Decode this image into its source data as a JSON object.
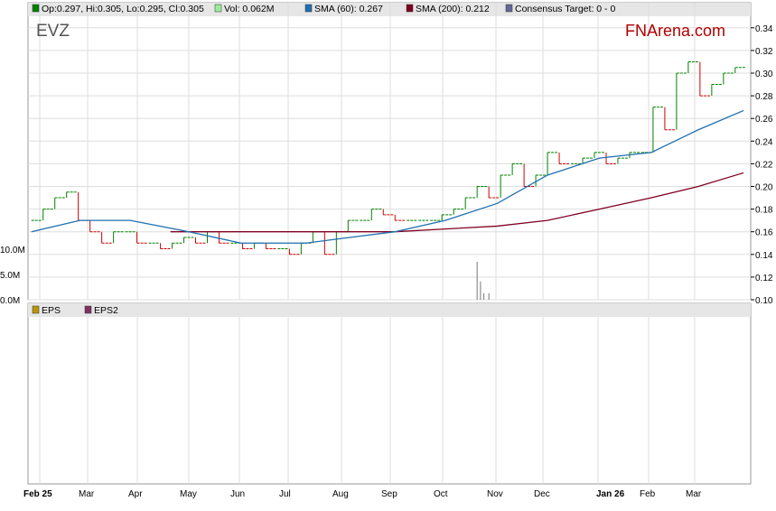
{
  "legend": [
    {
      "label": "Op:0.297, Hi:0.305, Lo:0.295, Cl:0.305",
      "color": "#008000"
    },
    {
      "label": "Vol: 0.062M",
      "color": "#99ee99"
    },
    {
      "label": "SMA (60): 0.267",
      "color": "#1f6fb0"
    },
    {
      "label": "SMA (200): 0.212",
      "color": "#800020"
    },
    {
      "label": "Consensus Target: 0 - 0",
      "color": "#666699"
    }
  ],
  "ticker": "EVZ",
  "brand": "FNArena.com",
  "lower_legend": [
    {
      "label": "EPS",
      "color": "#b8960b"
    },
    {
      "label": "EPS2",
      "color": "#803060"
    }
  ],
  "chart_data": {
    "type": "line",
    "price_axis": {
      "ticks": [
        "0.34",
        "0.32",
        "0.30",
        "0.28",
        "0.26",
        "0.24",
        "0.22",
        "0.20",
        "0.18",
        "0.16",
        "0.14",
        "0.12",
        "0.10"
      ],
      "ylim": [
        0.1,
        0.34
      ]
    },
    "volume_axis": {
      "ticks": [
        "10.0M",
        "5.0M",
        "0.0M"
      ]
    },
    "x_ticks": [
      "Feb 25",
      "Mar",
      "Apr",
      "May",
      "Jun",
      "Jul",
      "Aug",
      "Sep",
      "Oct",
      "Nov",
      "Dec",
      "Jan 26",
      "Feb",
      "Mar"
    ],
    "price": [
      [
        "2025-01-27",
        0.17
      ],
      [
        "2025-02-03",
        0.18
      ],
      [
        "2025-02-10",
        0.19
      ],
      [
        "2025-02-17",
        0.195
      ],
      [
        "2025-02-24",
        0.17
      ],
      [
        "2025-03-03",
        0.16
      ],
      [
        "2025-03-10",
        0.15
      ],
      [
        "2025-03-17",
        0.16
      ],
      [
        "2025-03-24",
        0.16
      ],
      [
        "2025-03-31",
        0.15
      ],
      [
        "2025-04-07",
        0.15
      ],
      [
        "2025-04-14",
        0.145
      ],
      [
        "2025-04-21",
        0.15
      ],
      [
        "2025-04-28",
        0.155
      ],
      [
        "2025-05-05",
        0.15
      ],
      [
        "2025-05-12",
        0.16
      ],
      [
        "2025-05-19",
        0.15
      ],
      [
        "2025-05-26",
        0.15
      ],
      [
        "2025-06-02",
        0.145
      ],
      [
        "2025-06-09",
        0.15
      ],
      [
        "2025-06-16",
        0.145
      ],
      [
        "2025-06-23",
        0.145
      ],
      [
        "2025-06-30",
        0.14
      ],
      [
        "2025-07-07",
        0.15
      ],
      [
        "2025-07-14",
        0.16
      ],
      [
        "2025-07-21",
        0.14
      ],
      [
        "2025-07-28",
        0.16
      ],
      [
        "2025-08-04",
        0.17
      ],
      [
        "2025-08-11",
        0.17
      ],
      [
        "2025-08-18",
        0.18
      ],
      [
        "2025-08-25",
        0.175
      ],
      [
        "2025-09-01",
        0.17
      ],
      [
        "2025-09-08",
        0.17
      ],
      [
        "2025-09-15",
        0.17
      ],
      [
        "2025-09-22",
        0.17
      ],
      [
        "2025-09-29",
        0.175
      ],
      [
        "2025-10-06",
        0.18
      ],
      [
        "2025-10-13",
        0.19
      ],
      [
        "2025-10-20",
        0.2
      ],
      [
        "2025-10-27",
        0.19
      ],
      [
        "2025-11-03",
        0.21
      ],
      [
        "2025-11-10",
        0.22
      ],
      [
        "2025-11-17",
        0.2
      ],
      [
        "2025-11-24",
        0.21
      ],
      [
        "2025-12-01",
        0.23
      ],
      [
        "2025-12-08",
        0.22
      ],
      [
        "2025-12-15",
        0.22
      ],
      [
        "2025-12-22",
        0.225
      ],
      [
        "2025-12-29",
        0.23
      ],
      [
        "2026-01-05",
        0.22
      ],
      [
        "2026-01-12",
        0.225
      ],
      [
        "2026-01-19",
        0.23
      ],
      [
        "2026-01-26",
        0.23
      ],
      [
        "2026-02-02",
        0.27
      ],
      [
        "2026-02-09",
        0.25
      ],
      [
        "2026-02-16",
        0.3
      ],
      [
        "2026-02-23",
        0.31
      ],
      [
        "2026-03-02",
        0.28
      ],
      [
        "2026-03-09",
        0.29
      ],
      [
        "2026-03-16",
        0.3
      ],
      [
        "2026-03-23",
        0.305
      ]
    ],
    "sma60": [
      [
        "2025-01-27",
        0.16
      ],
      [
        "2025-02-25",
        0.17
      ],
      [
        "2025-03-27",
        0.17
      ],
      [
        "2025-05-01",
        0.16
      ],
      [
        "2025-06-01",
        0.15
      ],
      [
        "2025-07-10",
        0.15
      ],
      [
        "2025-08-05",
        0.155
      ],
      [
        "2025-09-01",
        0.16
      ],
      [
        "2025-10-01",
        0.17
      ],
      [
        "2025-11-01",
        0.185
      ],
      [
        "2025-12-01",
        0.21
      ],
      [
        "2026-01-01",
        0.225
      ],
      [
        "2026-02-01",
        0.23
      ],
      [
        "2026-03-01",
        0.25
      ],
      [
        "2026-03-28",
        0.267
      ]
    ],
    "sma200": [
      [
        "2025-04-20",
        0.16
      ],
      [
        "2025-07-01",
        0.16
      ],
      [
        "2025-09-01",
        0.16
      ],
      [
        "2025-11-01",
        0.165
      ],
      [
        "2025-12-01",
        0.17
      ],
      [
        "2026-01-01",
        0.18
      ],
      [
        "2026-02-01",
        0.19
      ],
      [
        "2026-03-01",
        0.2
      ],
      [
        "2026-03-28",
        0.212
      ]
    ],
    "volume_M": [
      [
        "2025-10-20",
        7.5
      ],
      [
        "2025-10-22",
        3.6
      ],
      [
        "2025-10-24",
        1.3
      ],
      [
        "2025-10-27",
        1.3
      ]
    ],
    "grid": true
  }
}
